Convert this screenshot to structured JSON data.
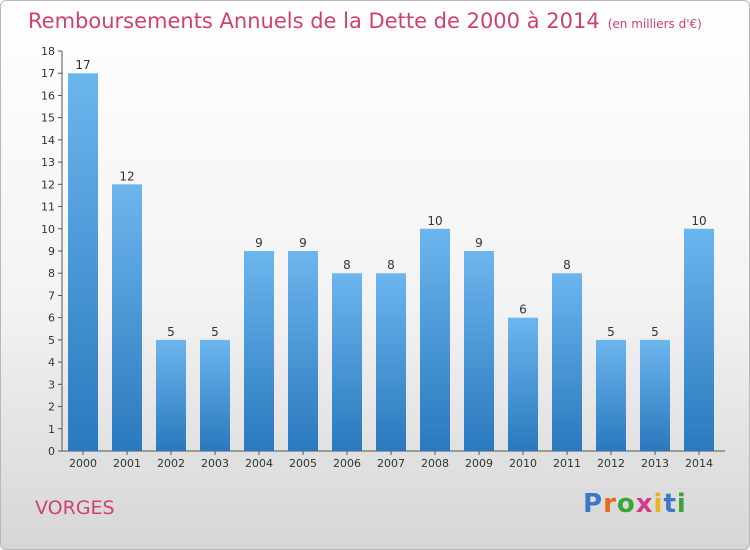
{
  "title": "Remboursements Annuels de la Dette de 2000 à 2014",
  "unit": "(en milliers d'€)",
  "location": "VORGES",
  "logo": {
    "text": "Proxiti",
    "letter_colors": [
      "#3a78c8",
      "#e46a1e",
      "#3aa63a",
      "#d43a8a",
      "#e8b41a",
      "#3a78c8",
      "#3aa63a"
    ]
  },
  "colors": {
    "bar_top": "#6cb6ef",
    "bar_bottom": "#2a79bd",
    "accent": "#d14070"
  },
  "chart_data": {
    "type": "bar",
    "categories": [
      "2000",
      "2001",
      "2002",
      "2003",
      "2004",
      "2005",
      "2006",
      "2007",
      "2008",
      "2009",
      "2010",
      "2011",
      "2012",
      "2013",
      "2014"
    ],
    "values": [
      17,
      12,
      5,
      5,
      9,
      9,
      8,
      8,
      10,
      9,
      6,
      8,
      5,
      5,
      10
    ],
    "ylim": [
      0,
      18
    ],
    "yticks": [
      0,
      1,
      2,
      3,
      4,
      5,
      6,
      7,
      8,
      9,
      10,
      11,
      12,
      13,
      14,
      15,
      16,
      17,
      18
    ],
    "grid": false,
    "legend": "none"
  }
}
